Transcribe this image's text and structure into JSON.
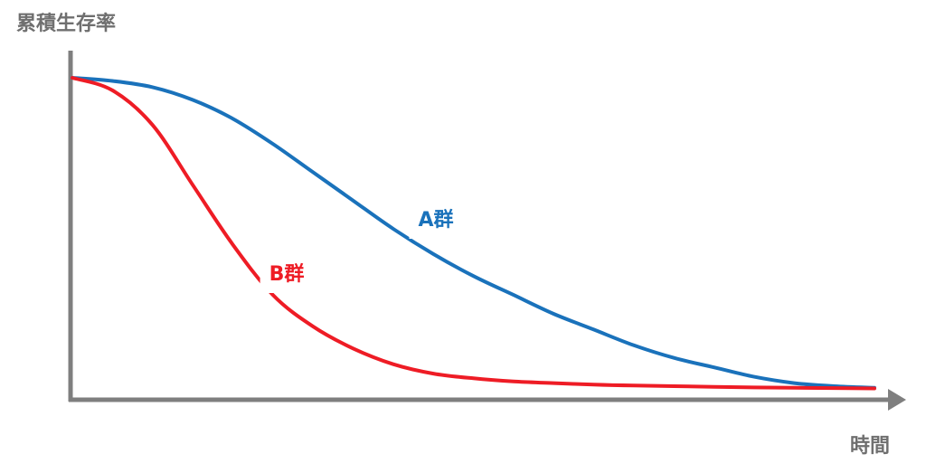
{
  "chart_data": {
    "type": "line",
    "title": "",
    "ylabel": "累積生存率",
    "xlabel": "時間",
    "xlim": [
      0,
      1
    ],
    "ylim": [
      0,
      1
    ],
    "grid": false,
    "legend": "inline",
    "series": [
      {
        "name": "A群",
        "color": "#1a72bb",
        "x": [
          0,
          0.05,
          0.1,
          0.15,
          0.2,
          0.25,
          0.3,
          0.35,
          0.4,
          0.45,
          0.5,
          0.55,
          0.6,
          0.65,
          0.7,
          0.75,
          0.8,
          0.85,
          0.9,
          0.95,
          1.0
        ],
        "y": [
          1.0,
          0.99,
          0.97,
          0.93,
          0.87,
          0.79,
          0.7,
          0.61,
          0.52,
          0.44,
          0.37,
          0.31,
          0.25,
          0.2,
          0.15,
          0.11,
          0.08,
          0.05,
          0.03,
          0.02,
          0.015
        ]
      },
      {
        "name": "B群",
        "color": "#ee1c25",
        "x": [
          0,
          0.05,
          0.1,
          0.15,
          0.2,
          0.25,
          0.3,
          0.35,
          0.4,
          0.45,
          0.5,
          0.55,
          0.6,
          0.65,
          0.7,
          0.75,
          0.8,
          0.85,
          0.9,
          0.95,
          1.0
        ],
        "y": [
          1.0,
          0.96,
          0.85,
          0.66,
          0.47,
          0.31,
          0.21,
          0.14,
          0.09,
          0.06,
          0.045,
          0.035,
          0.03,
          0.025,
          0.022,
          0.02,
          0.018,
          0.016,
          0.015,
          0.014,
          0.013
        ]
      }
    ]
  },
  "colors": {
    "axis": "#7f7f7f",
    "label_text": "#6f6f6f"
  }
}
